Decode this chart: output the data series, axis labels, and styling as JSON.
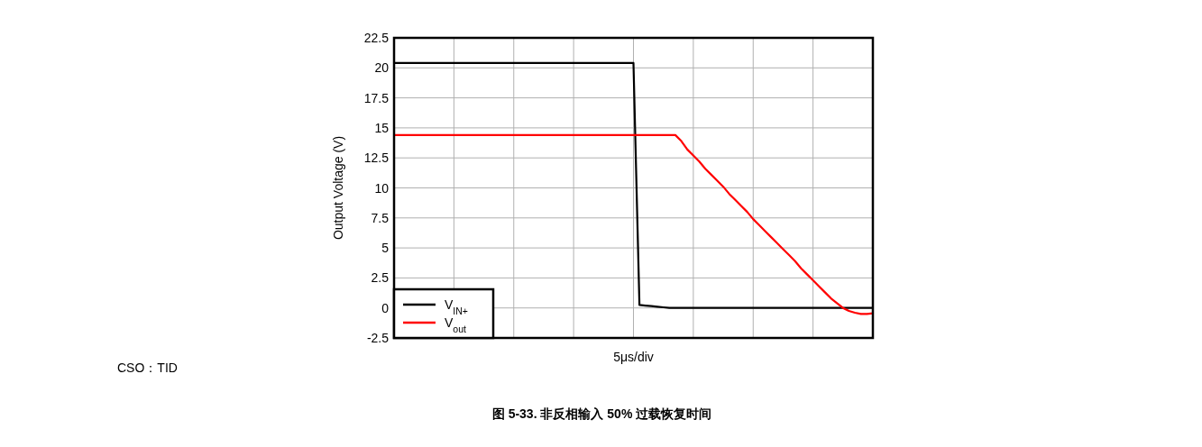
{
  "chart_data": {
    "type": "line",
    "title": "图 5-33. 非反相输入 50% 过载恢复时间",
    "ylabel": "Output Voltage (V)",
    "xlabel": "5μs/div",
    "annotations": [
      "CSO：TID"
    ],
    "categories": [
      null,
      null,
      null,
      null,
      null,
      null,
      null,
      null,
      null,
      null,
      null,
      null,
      null,
      null,
      null,
      null,
      null,
      null,
      null,
      null,
      null,
      null,
      null,
      null,
      null,
      null,
      null,
      null,
      null,
      null,
      null,
      null,
      null,
      null,
      null,
      null,
      null,
      null,
      null,
      null,
      null,
      null,
      null,
      null,
      null,
      null,
      null,
      null,
      null,
      null,
      null,
      null,
      null,
      null,
      null,
      null,
      null,
      null,
      null,
      null,
      null,
      null,
      null,
      null,
      null,
      null,
      null,
      null,
      null,
      null,
      null,
      null,
      null,
      null,
      null,
      null,
      null,
      null,
      null,
      null,
      null
    ],
    "series": [
      {
        "name": "V$_{IN+}$",
        "color": "#000000",
        "values": [
          20.4,
          20.4,
          20.4,
          20.4,
          20.4,
          20.4,
          20.4,
          20.4,
          20.4,
          20.4,
          20.4,
          20.4,
          20.4,
          20.4,
          20.4,
          20.4,
          20.4,
          20.4,
          20.4,
          20.4,
          20.4,
          20.4,
          20.4,
          20.4,
          20.4,
          20.4,
          20.4,
          20.4,
          20.4,
          20.4,
          20.4,
          20.4,
          20.4,
          20.4,
          20.4,
          20.4,
          20.4,
          20.4,
          20.4,
          20.4,
          20.4,
          0.25,
          0.2,
          0.15,
          0.1,
          0.05,
          0,
          0,
          0,
          0,
          0,
          0,
          0,
          0,
          0,
          0,
          0,
          0,
          0,
          0,
          0,
          0,
          0,
          0,
          0,
          0,
          0,
          0,
          0,
          0,
          0,
          0,
          0,
          0,
          0,
          0,
          0,
          0,
          0,
          0,
          0
        ]
      },
      {
        "name": "V$_{out}$",
        "color": "#ff0000",
        "values": [
          14.4,
          14.4,
          14.4,
          14.4,
          14.4,
          14.4,
          14.4,
          14.4,
          14.4,
          14.4,
          14.4,
          14.4,
          14.4,
          14.4,
          14.4,
          14.4,
          14.4,
          14.4,
          14.4,
          14.4,
          14.4,
          14.4,
          14.4,
          14.4,
          14.4,
          14.4,
          14.4,
          14.4,
          14.4,
          14.4,
          14.4,
          14.4,
          14.4,
          14.4,
          14.4,
          14.4,
          14.4,
          14.4,
          14.4,
          14.4,
          14.4,
          14.4,
          14.4,
          14.4,
          14.4,
          14.4,
          14.4,
          14.4,
          13.9,
          13.2,
          12.7,
          12.2,
          11.6,
          11.1,
          10.6,
          10.1,
          9.5,
          9.0,
          8.5,
          8.0,
          7.4,
          6.9,
          6.4,
          5.9,
          5.4,
          4.9,
          4.4,
          3.9,
          3.3,
          2.8,
          2.3,
          1.8,
          1.3,
          0.8,
          0.4,
          0.0,
          -0.25,
          -0.4,
          -0.5,
          -0.5,
          -0.45
        ]
      }
    ],
    "ylim": [
      -2.5,
      22.5
    ],
    "yticks": [
      -2.5,
      0,
      2.5,
      5,
      7.5,
      10,
      12.5,
      15,
      17.5,
      20,
      22.5
    ],
    "tick_labels": "y",
    "grid": true,
    "legend": "bottom left",
    "line_style": "solid",
    "marker": "none"
  }
}
